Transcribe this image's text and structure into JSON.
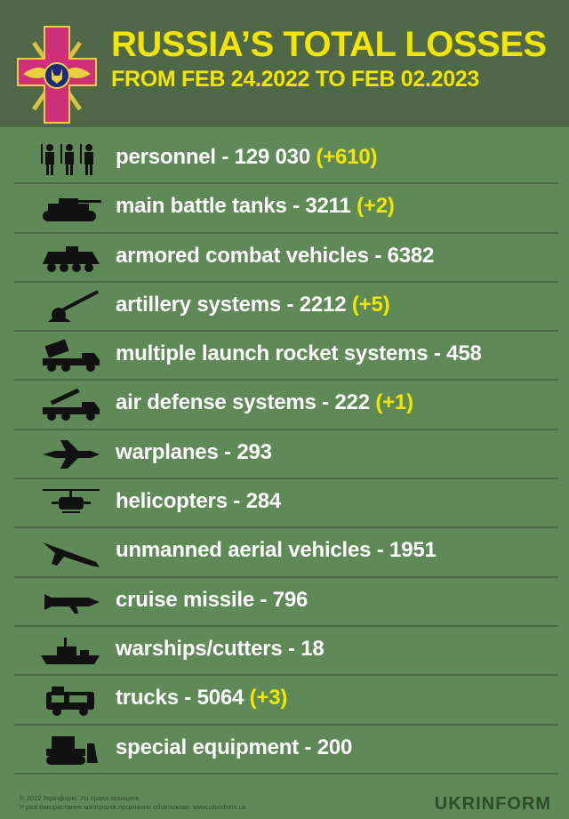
{
  "header": {
    "title": "RUSSIA’S TOTAL LOSSES",
    "subtitle": "FROM FEB 24.2022 TO FEB 02.2023"
  },
  "colors": {
    "header_bg": "#4f6847",
    "body_bg": "#5f8a57",
    "accent": "#f2e600",
    "text": "#ffffff"
  },
  "items": [
    {
      "icon": "soldiers-icon",
      "label": "personnel - 129 030",
      "change": "(+610)"
    },
    {
      "icon": "tank-icon",
      "label": "main battle tanks - 3211",
      "change": "(+2)"
    },
    {
      "icon": "armored-vehicle-icon",
      "label": "armored combat vehicles - 6382",
      "change": ""
    },
    {
      "icon": "artillery-icon",
      "label": "artillery systems - 2212",
      "change": "(+5)"
    },
    {
      "icon": "rocket-launcher-icon",
      "label": "multiple launch rocket systems - 458",
      "change": ""
    },
    {
      "icon": "air-defense-icon",
      "label": "air defense systems - 222",
      "change": "(+1)"
    },
    {
      "icon": "warplane-icon",
      "label": "warplanes - 293",
      "change": ""
    },
    {
      "icon": "helicopter-icon",
      "label": "helicopters - 284",
      "change": ""
    },
    {
      "icon": "drone-icon",
      "label": "unmanned aerial vehicles - 1951",
      "change": ""
    },
    {
      "icon": "cruise-missile-icon",
      "label": "cruise missile - 796",
      "change": ""
    },
    {
      "icon": "warship-icon",
      "label": "warships/cutters - 18",
      "change": ""
    },
    {
      "icon": "truck-icon",
      "label": "trucks - 5064",
      "change": "(+3)"
    },
    {
      "icon": "bulldozer-icon",
      "label": "special equipment - 200",
      "change": ""
    }
  ],
  "footer": {
    "copyright": "© 2022 Укрінформ. Усі права захищені.",
    "notice": "У разі використання матеріалів посилання обов'язкове. www.ukrinform.ua",
    "brand": "UKRINFORM"
  }
}
